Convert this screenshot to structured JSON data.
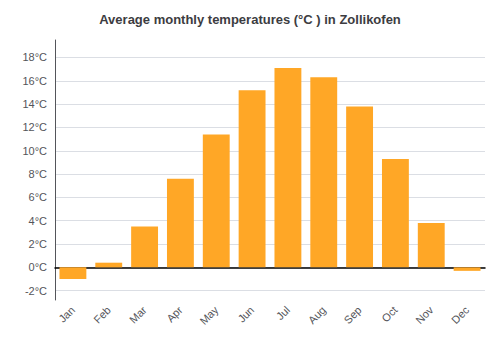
{
  "chart_data": {
    "type": "bar",
    "title": "Average monthly temperatures (°C ) in Zollikofen",
    "categories": [
      "Jan",
      "Feb",
      "Mar",
      "Apr",
      "May",
      "Jun",
      "Jul",
      "Aug",
      "Sep",
      "Oct",
      "Nov",
      "Dec"
    ],
    "values": [
      -1.0,
      0.4,
      3.5,
      7.6,
      11.4,
      15.2,
      17.1,
      16.3,
      13.8,
      9.3,
      3.8,
      -0.3
    ],
    "color": "#FFA726",
    "ylim": [
      -2.8,
      19.5
    ],
    "yticks": [
      {
        "value": -2,
        "label": "-2°C"
      },
      {
        "value": 0,
        "label": "0°C"
      },
      {
        "value": 2,
        "label": "2°C"
      },
      {
        "value": 4,
        "label": "4°C"
      },
      {
        "value": 6,
        "label": "6°C"
      },
      {
        "value": 8,
        "label": "8°C"
      },
      {
        "value": 10,
        "label": "10°C"
      },
      {
        "value": 12,
        "label": "12°C"
      },
      {
        "value": 14,
        "label": "14°C"
      },
      {
        "value": 16,
        "label": "16°C"
      },
      {
        "value": 18,
        "label": "18°C"
      }
    ],
    "grid": true
  }
}
